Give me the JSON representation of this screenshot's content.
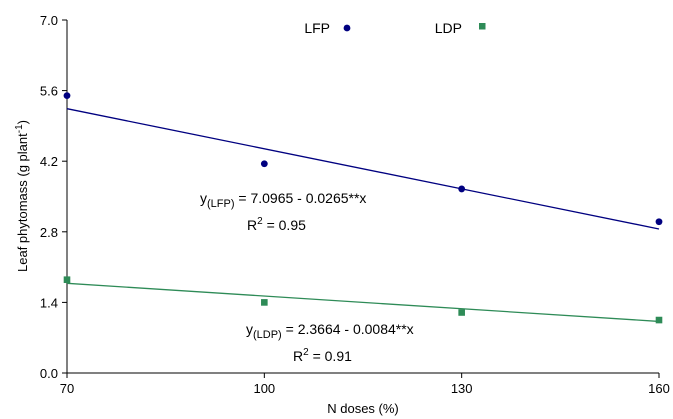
{
  "chart_data": {
    "type": "scatter",
    "xlabel": "N doses (%)",
    "ylabel_main": "Leaf phytomass (g plant",
    "ylabel_sup": "-1",
    "ylabel_close": ")",
    "xlim": [
      70,
      160
    ],
    "ylim": [
      0,
      7
    ],
    "x_ticks": [
      70,
      100,
      130,
      160
    ],
    "y_ticks": [
      "0.0",
      "1.4",
      "2.8",
      "4.2",
      "5.6",
      "7.0"
    ],
    "legend_position": "top-center",
    "series": [
      {
        "name": "LFP",
        "marker": "circle",
        "color": "#000080",
        "x": [
          70,
          100,
          130,
          160
        ],
        "y": [
          5.5,
          4.15,
          3.65,
          3.0
        ],
        "fit": {
          "intercept": 7.0965,
          "slope": -0.0265
        },
        "equation": {
          "y": "y",
          "sub": "(LFP)",
          "rhs": " = 7.0965 - 0.0265**x",
          "r2_prefix": "R",
          "r2_sup": "2",
          "r2_value": " = 0.95"
        }
      },
      {
        "name": "LDP",
        "marker": "square",
        "color": "#2e8b57",
        "x": [
          70,
          100,
          130,
          160
        ],
        "y": [
          1.85,
          1.4,
          1.2,
          1.05
        ],
        "fit": {
          "intercept": 2.3664,
          "slope": -0.0084
        },
        "equation": {
          "y": "y",
          "sub": "(LDP)",
          "rhs": " = 2.3664 - 0.0084**x",
          "r2_prefix": "R",
          "r2_sup": "2",
          "r2_value": " = 0.91"
        }
      }
    ]
  }
}
